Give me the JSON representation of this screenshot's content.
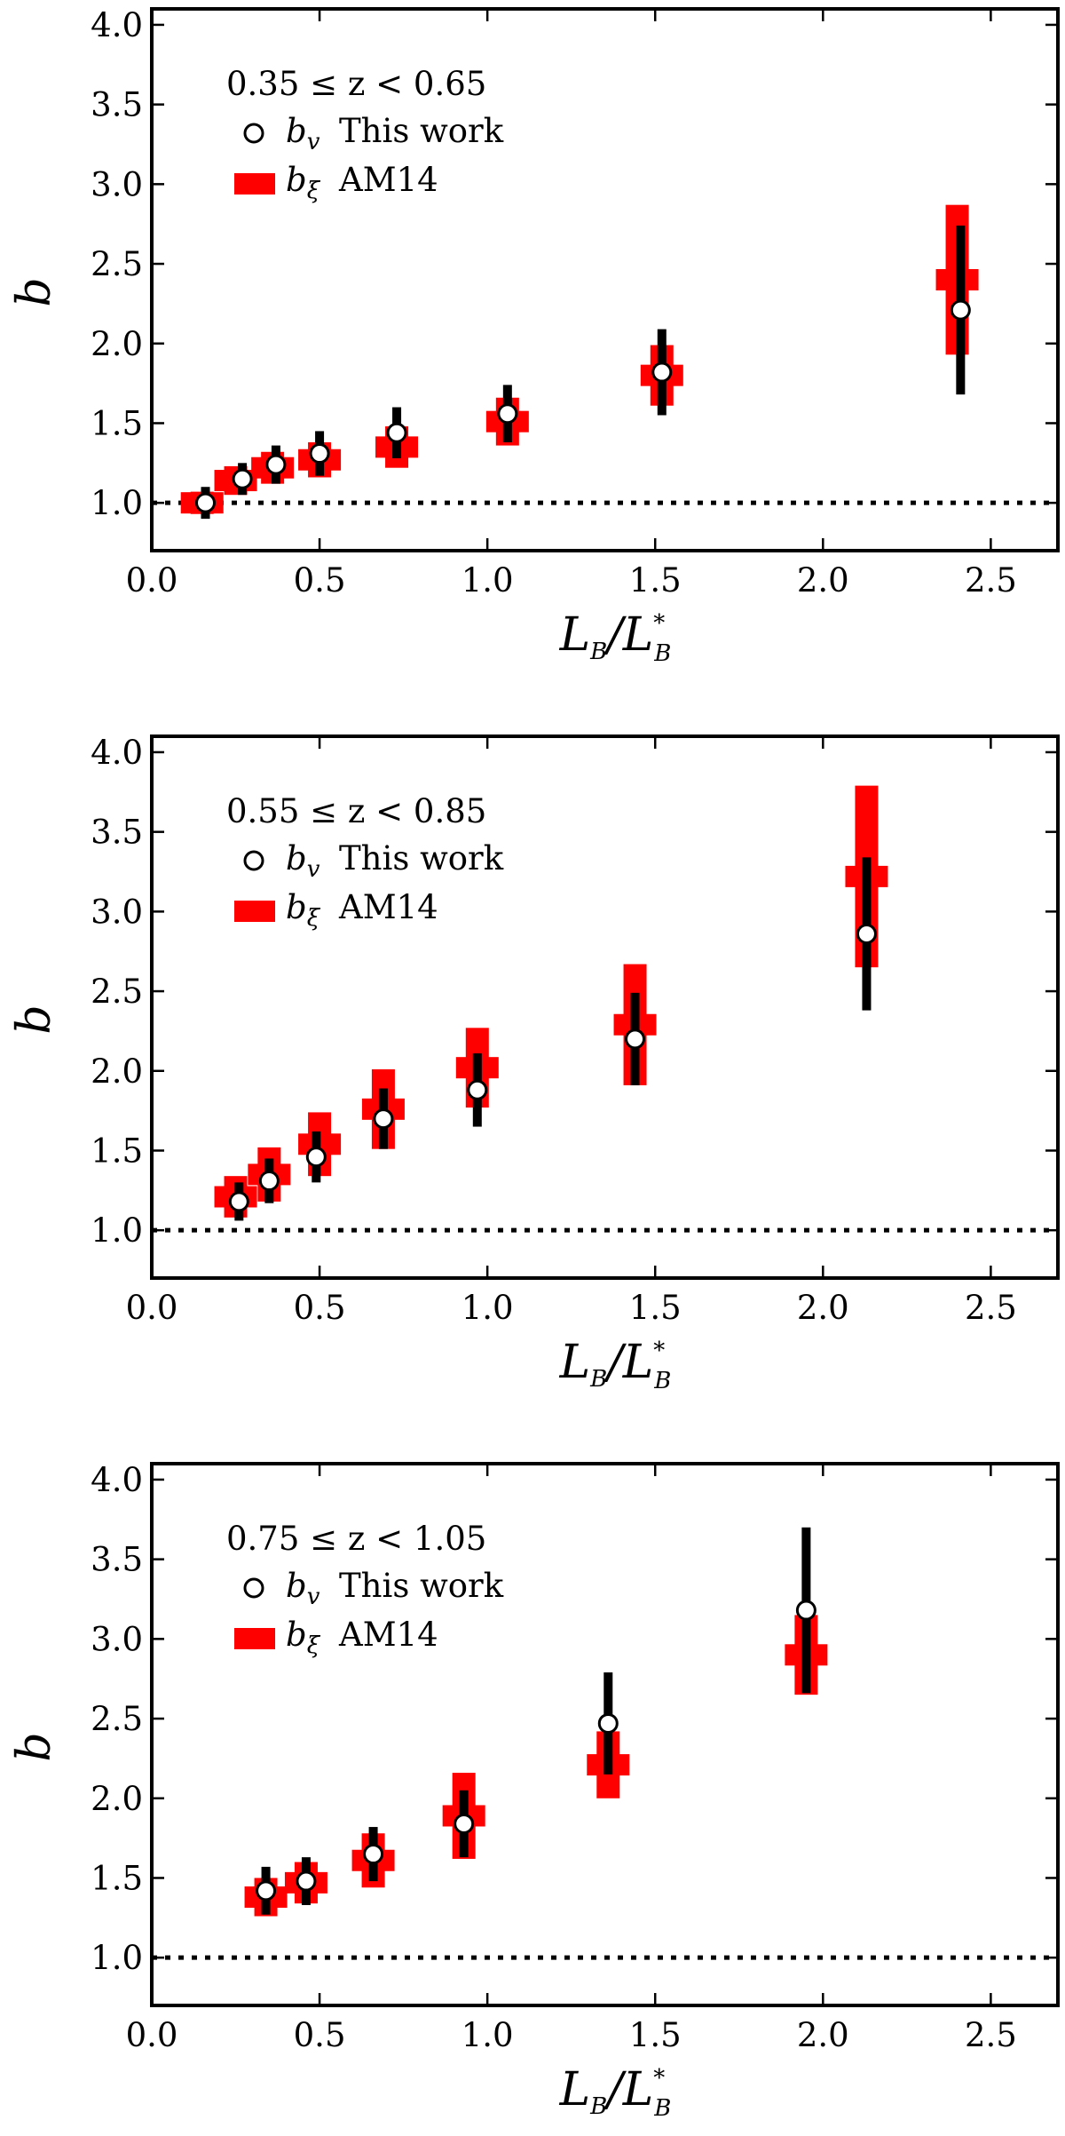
{
  "chart_data": [
    {
      "type": "scatter",
      "title": "",
      "annotation": "0.35 ≤ z < 0.65",
      "xlabel": "L_B/L*_B",
      "ylabel": "b",
      "xlim": [
        0.0,
        2.7
      ],
      "ylim": [
        0.7,
        4.1
      ],
      "x_ticks": [
        "0.0",
        "0.5",
        "1.0",
        "1.5",
        "2.0",
        "2.5"
      ],
      "y_ticks": [
        "1.0",
        "1.5",
        "2.0",
        "2.5",
        "3.0",
        "3.5",
        "4.0"
      ],
      "reference_line": {
        "y": 1.0,
        "style": "dotted"
      },
      "legend": {
        "placement": "top-left",
        "entries": [
          {
            "symbol": "b",
            "subscript": "v",
            "label": "This work",
            "marker": "open-circle"
          },
          {
            "symbol": "b",
            "subscript": "ξ",
            "label": "AM14",
            "marker": "red-bar"
          }
        ]
      },
      "series": [
        {
          "name": "b_v This work",
          "color": "#000000",
          "points": [
            {
              "x": 0.16,
              "y": 1.0,
              "err": 0.1
            },
            {
              "x": 0.27,
              "y": 1.15,
              "err": 0.1
            },
            {
              "x": 0.37,
              "y": 1.24,
              "err": 0.12
            },
            {
              "x": 0.5,
              "y": 1.31,
              "err": 0.14
            },
            {
              "x": 0.73,
              "y": 1.44,
              "err": 0.16
            },
            {
              "x": 1.06,
              "y": 1.56,
              "err": 0.18
            },
            {
              "x": 1.52,
              "y": 1.82,
              "err": 0.27
            },
            {
              "x": 2.41,
              "y": 2.21,
              "err": 0.53
            }
          ]
        },
        {
          "name": "b_ξ AM14",
          "color": "#ff0000",
          "points": [
            {
              "x": 0.15,
              "y": 1.0,
              "err": 0.07
            },
            {
              "x": 0.25,
              "y": 1.14,
              "err": 0.09
            },
            {
              "x": 0.36,
              "y": 1.22,
              "err": 0.1
            },
            {
              "x": 0.5,
              "y": 1.27,
              "err": 0.11
            },
            {
              "x": 0.73,
              "y": 1.35,
              "err": 0.13
            },
            {
              "x": 1.06,
              "y": 1.51,
              "err": 0.15
            },
            {
              "x": 1.52,
              "y": 1.8,
              "err": 0.19
            },
            {
              "x": 2.4,
              "y": 2.4,
              "err": 0.47
            }
          ]
        }
      ]
    },
    {
      "type": "scatter",
      "title": "",
      "annotation": "0.55 ≤ z < 0.85",
      "xlabel": "L_B/L*_B",
      "ylabel": "b",
      "xlim": [
        0.0,
        2.7
      ],
      "ylim": [
        0.7,
        4.1
      ],
      "x_ticks": [
        "0.0",
        "0.5",
        "1.0",
        "1.5",
        "2.0",
        "2.5"
      ],
      "y_ticks": [
        "1.0",
        "1.5",
        "2.0",
        "2.5",
        "3.0",
        "3.5",
        "4.0"
      ],
      "reference_line": {
        "y": 1.0,
        "style": "dotted"
      },
      "legend": {
        "placement": "top-left",
        "entries": [
          {
            "symbol": "b",
            "subscript": "v",
            "label": "This work",
            "marker": "open-circle"
          },
          {
            "symbol": "b",
            "subscript": "ξ",
            "label": "AM14",
            "marker": "red-bar"
          }
        ]
      },
      "series": [
        {
          "name": "b_v This work",
          "color": "#000000",
          "points": [
            {
              "x": 0.26,
              "y": 1.18,
              "err": 0.12
            },
            {
              "x": 0.35,
              "y": 1.31,
              "err": 0.14
            },
            {
              "x": 0.49,
              "y": 1.46,
              "err": 0.16
            },
            {
              "x": 0.69,
              "y": 1.7,
              "err": 0.19
            },
            {
              "x": 0.97,
              "y": 1.88,
              "err": 0.23
            },
            {
              "x": 1.44,
              "y": 2.2,
              "err": 0.29
            },
            {
              "x": 2.13,
              "y": 2.86,
              "err": 0.48
            }
          ]
        },
        {
          "name": "b_ξ AM14",
          "color": "#ff0000",
          "points": [
            {
              "x": 0.25,
              "y": 1.21,
              "err": 0.13
            },
            {
              "x": 0.35,
              "y": 1.35,
              "err": 0.17
            },
            {
              "x": 0.5,
              "y": 1.54,
              "err": 0.2
            },
            {
              "x": 0.69,
              "y": 1.76,
              "err": 0.25
            },
            {
              "x": 0.97,
              "y": 2.02,
              "err": 0.25
            },
            {
              "x": 1.44,
              "y": 2.29,
              "err": 0.38
            },
            {
              "x": 2.13,
              "y": 3.22,
              "err": 0.57
            }
          ]
        }
      ]
    },
    {
      "type": "scatter",
      "title": "",
      "annotation": "0.75 ≤ z < 1.05",
      "xlabel": "L_B/L*_B",
      "ylabel": "b",
      "xlim": [
        0.0,
        2.7
      ],
      "ylim": [
        0.7,
        4.1
      ],
      "x_ticks": [
        "0.0",
        "0.5",
        "1.0",
        "1.5",
        "2.0",
        "2.5"
      ],
      "y_ticks": [
        "1.0",
        "1.5",
        "2.0",
        "2.5",
        "3.0",
        "3.5",
        "4.0"
      ],
      "reference_line": {
        "y": 1.0,
        "style": "dotted"
      },
      "legend": {
        "placement": "top-left",
        "entries": [
          {
            "symbol": "b",
            "subscript": "v",
            "label": "This work",
            "marker": "open-circle"
          },
          {
            "symbol": "b",
            "subscript": "ξ",
            "label": "AM14",
            "marker": "red-bar"
          }
        ]
      },
      "series": [
        {
          "name": "b_v This work",
          "color": "#000000",
          "points": [
            {
              "x": 0.34,
              "y": 1.42,
              "err": 0.15
            },
            {
              "x": 0.46,
              "y": 1.48,
              "err": 0.15
            },
            {
              "x": 0.66,
              "y": 1.65,
              "err": 0.17
            },
            {
              "x": 0.93,
              "y": 1.84,
              "err": 0.21
            },
            {
              "x": 1.36,
              "y": 2.47,
              "err": 0.32
            },
            {
              "x": 1.95,
              "y": 3.18,
              "err": 0.52
            }
          ]
        },
        {
          "name": "b_ξ AM14",
          "color": "#ff0000",
          "points": [
            {
              "x": 0.34,
              "y": 1.38,
              "err": 0.12
            },
            {
              "x": 0.46,
              "y": 1.47,
              "err": 0.13
            },
            {
              "x": 0.66,
              "y": 1.61,
              "err": 0.17
            },
            {
              "x": 0.93,
              "y": 1.89,
              "err": 0.27
            },
            {
              "x": 1.36,
              "y": 2.21,
              "err": 0.21
            },
            {
              "x": 1.95,
              "y": 2.9,
              "err": 0.25
            }
          ]
        }
      ]
    }
  ]
}
